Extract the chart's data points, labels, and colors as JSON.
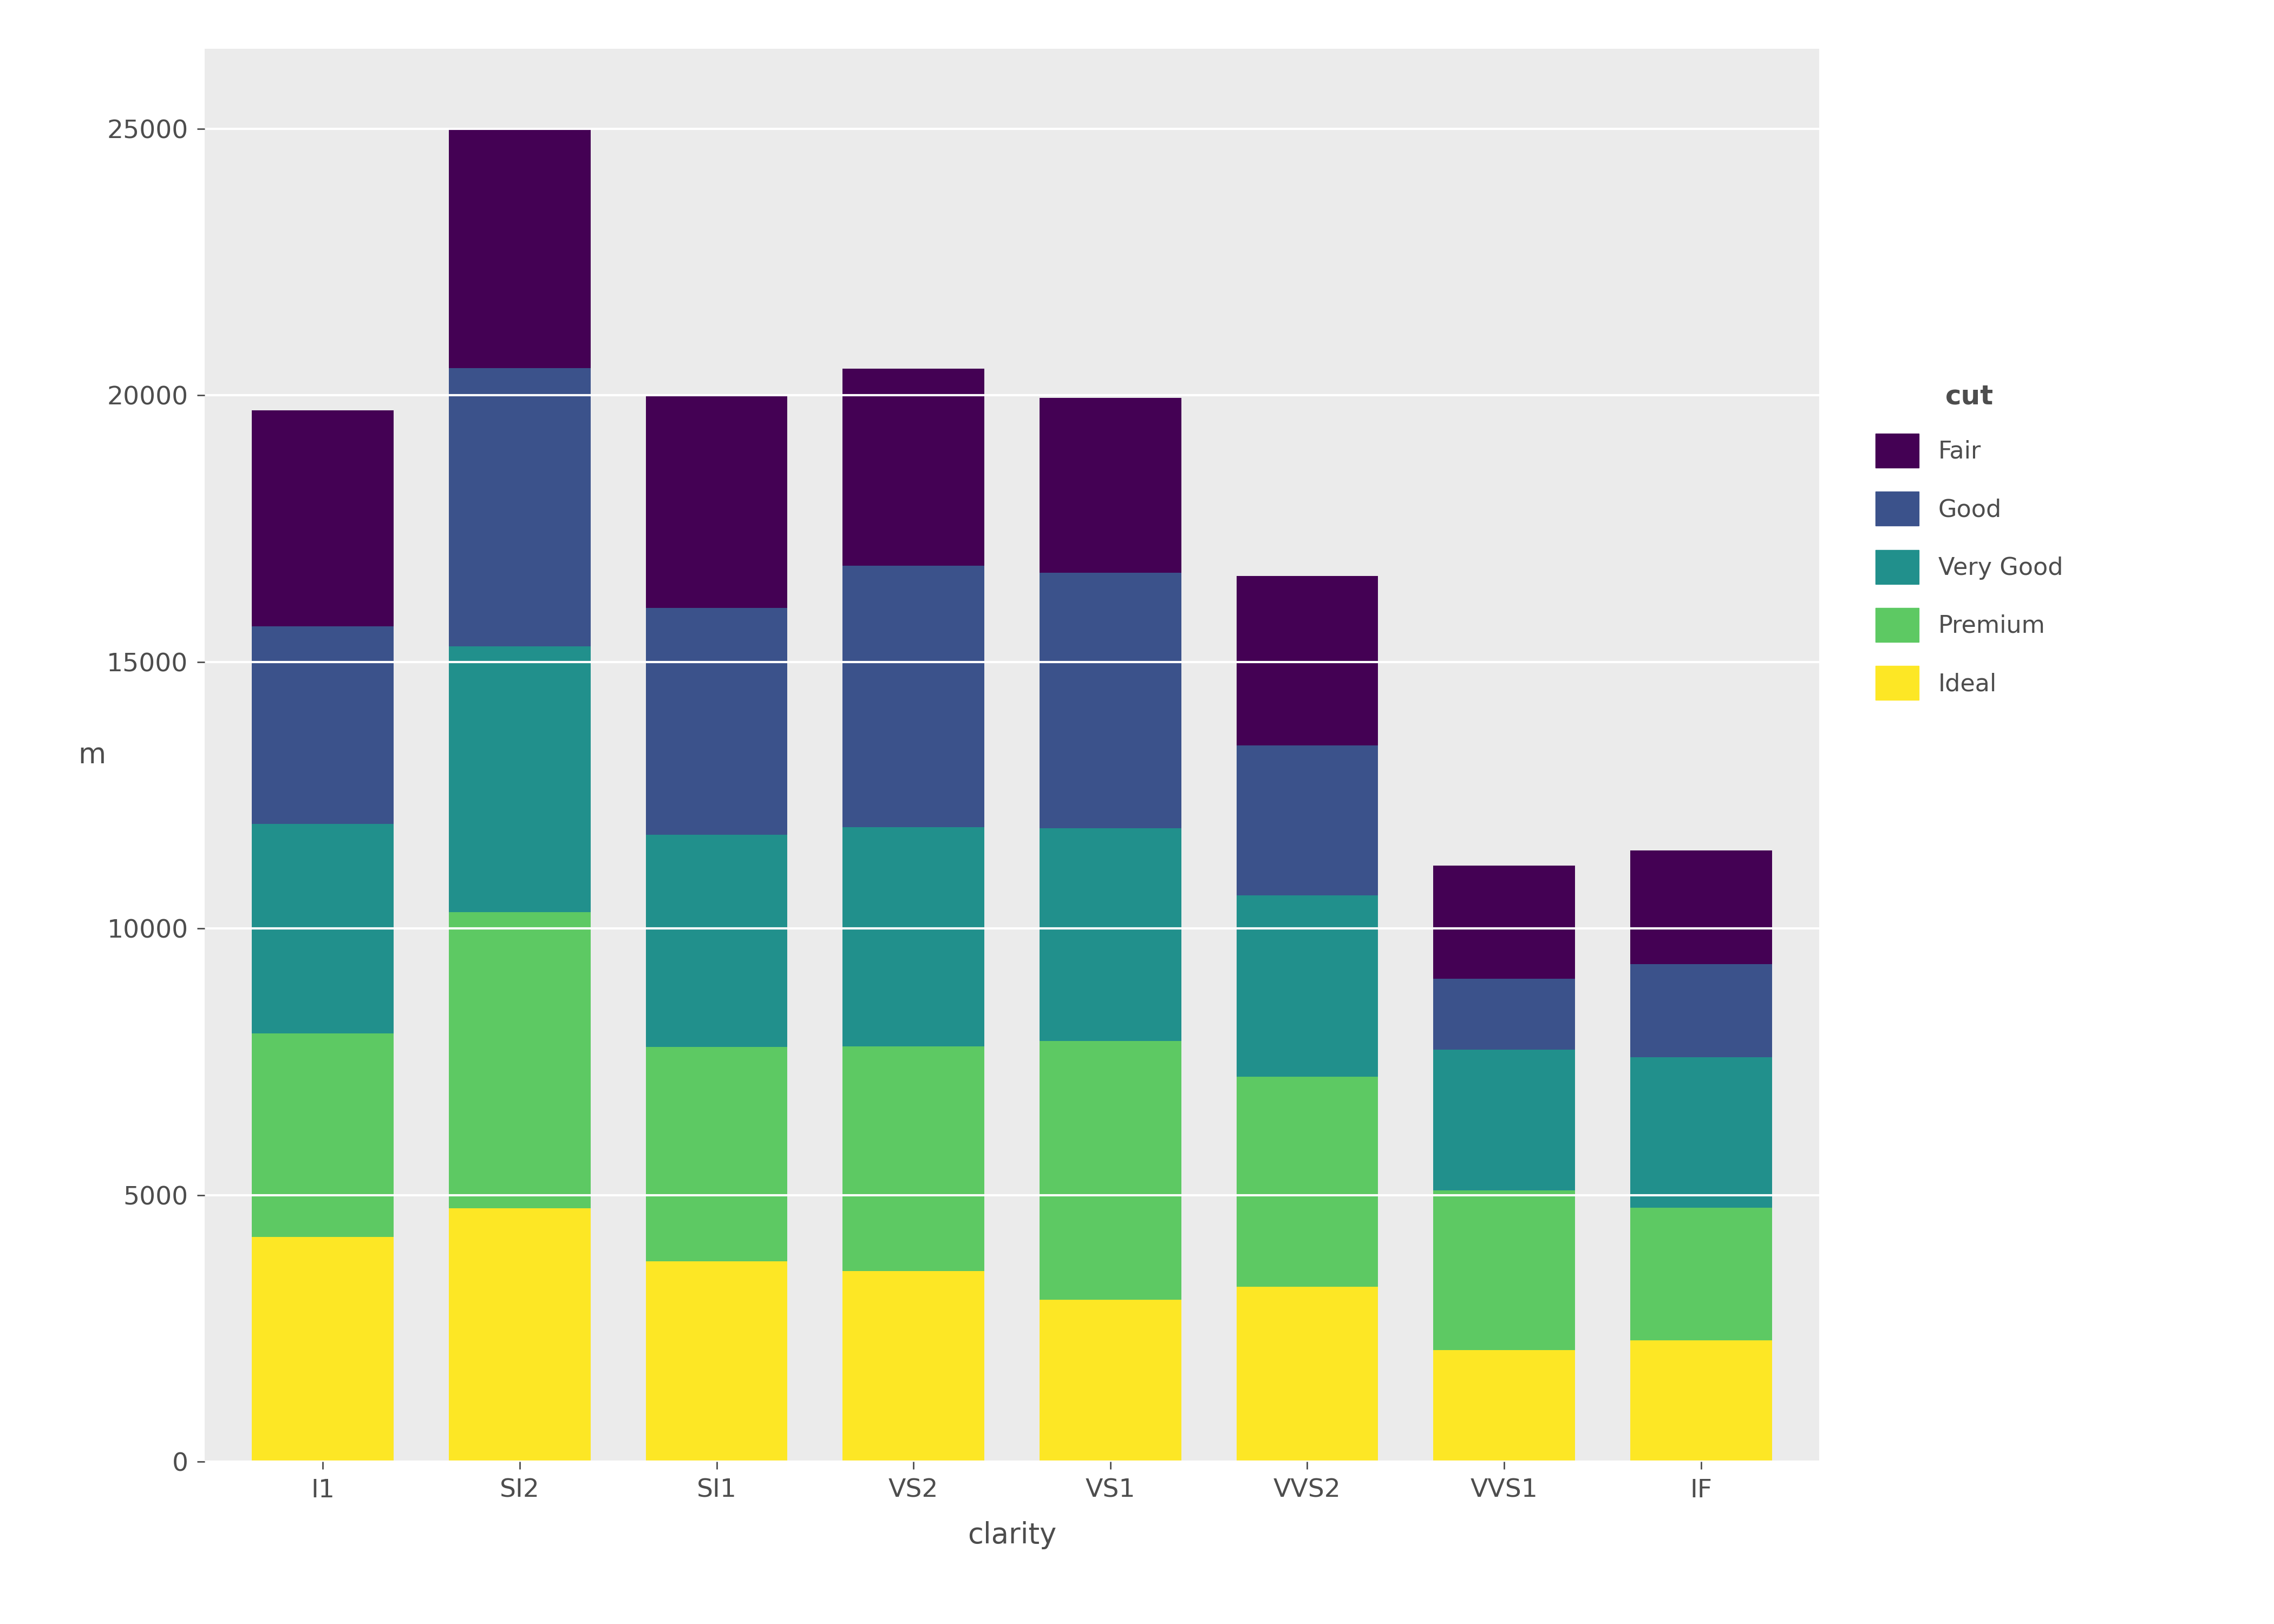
{
  "categories": [
    "I1",
    "SI2",
    "SI1",
    "VS2",
    "VS1",
    "VVS2",
    "VVS1",
    "IF"
  ],
  "cut_labels": [
    "Ideal",
    "Premium",
    "Very Good",
    "Good",
    "Fair"
  ],
  "colors": [
    "#fde725",
    "#5dc963",
    "#21908c",
    "#3b528b",
    "#440154"
  ],
  "stacked_data": {
    "I1": [
      4209,
      3826,
      3924,
      3703,
      4051
    ],
    "SI2": [
      4756,
      5545,
      4988,
      5220,
      4502
    ],
    "SI1": [
      3756,
      4022,
      3977,
      4258,
      3996
    ],
    "VS2": [
      3576,
      4215,
      4107,
      4903,
      3701
    ],
    "VS1": [
      3037,
      4848,
      3996,
      4791,
      3284
    ],
    "VVS2": [
      3284,
      3935,
      3398,
      2811,
      3185
    ],
    "VVS1": [
      2090,
      2993,
      2648,
      1323,
      2124
    ],
    "IF": [
      2272,
      2492,
      2819,
      1743,
      2133
    ]
  },
  "ylabel": "m",
  "xlabel": "clarity",
  "legend_title": "cut",
  "ylim": [
    0,
    26500
  ],
  "yticks": [
    0,
    5000,
    10000,
    15000,
    20000,
    25000
  ],
  "background_color": "#ebebeb",
  "grid_color": "#ffffff",
  "bar_width": 0.72,
  "figure_bg": "#ffffff"
}
